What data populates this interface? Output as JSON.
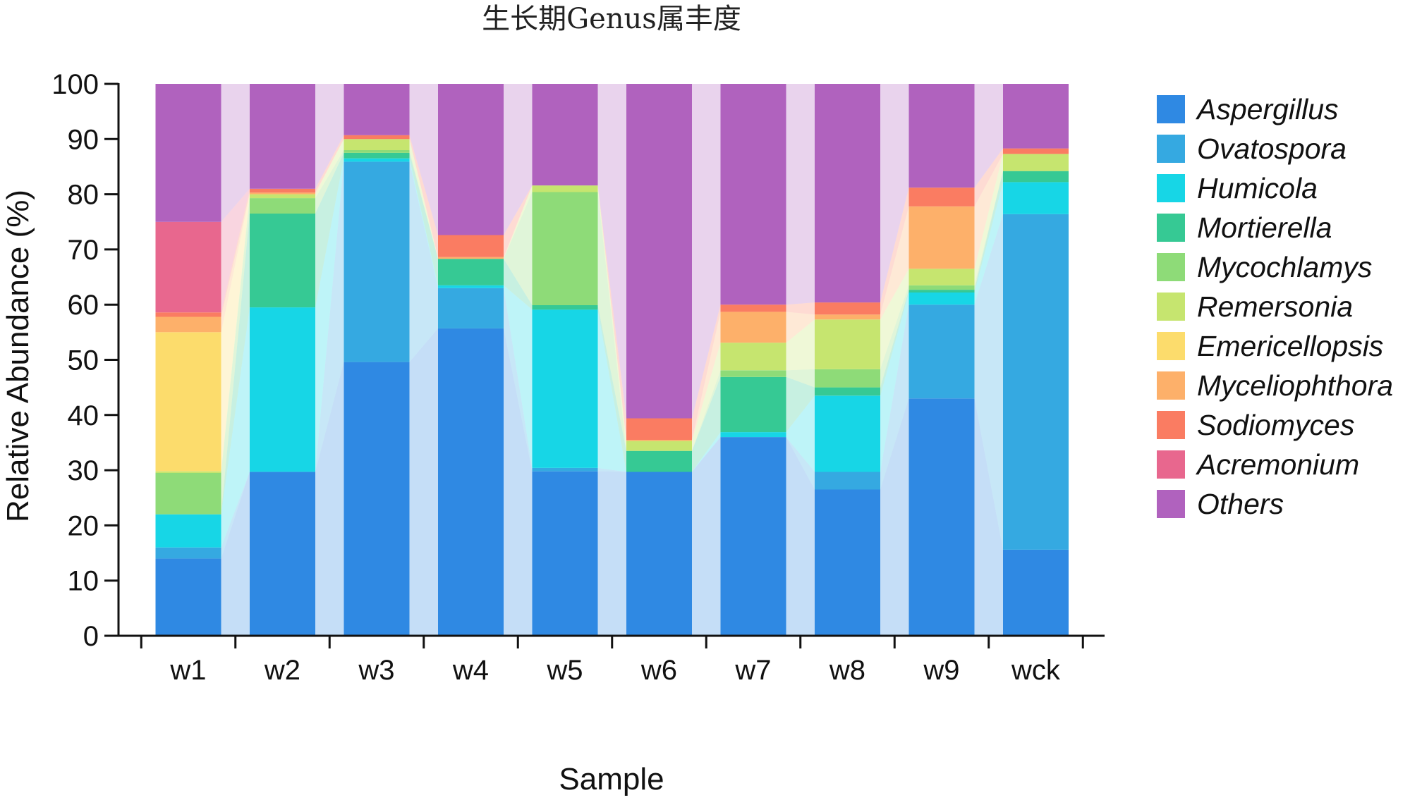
{
  "chart_data": {
    "type": "bar",
    "stacked": true,
    "title": "生长期Genus属丰度",
    "xlabel": "Sample",
    "ylabel": "Relative Abundance (%)",
    "ylim": [
      0,
      100
    ],
    "yticks": [
      0,
      10,
      20,
      30,
      40,
      50,
      60,
      70,
      80,
      90,
      100
    ],
    "categories": [
      "w1",
      "w2",
      "w3",
      "w4",
      "w5",
      "w6",
      "w7",
      "w8",
      "w9",
      "wck"
    ],
    "legend_position": "right",
    "series": [
      {
        "name": "Aspergillus",
        "color": "#2F89E3",
        "values": [
          14.0,
          29.7,
          49.6,
          55.7,
          29.8,
          29.7,
          36.0,
          26.5,
          43.0,
          15.6
        ]
      },
      {
        "name": "Ovatospora",
        "color": "#35A9E1",
        "values": [
          2.0,
          0.0,
          36.3,
          7.3,
          0.6,
          0.0,
          0.0,
          3.2,
          17.0,
          60.8
        ]
      },
      {
        "name": "Humicola",
        "color": "#17D6E6",
        "values": [
          6.0,
          29.8,
          0.6,
          0.5,
          28.7,
          0.0,
          0.9,
          13.8,
          2.2,
          5.8
        ]
      },
      {
        "name": "Mortierella",
        "color": "#36C994",
        "values": [
          0.0,
          17.0,
          1.0,
          4.8,
          0.8,
          3.8,
          10.0,
          1.5,
          0.5,
          2.0
        ]
      },
      {
        "name": "Mycochlamys",
        "color": "#8EDB78",
        "values": [
          7.5,
          2.8,
          0.5,
          0.0,
          20.5,
          0.0,
          1.2,
          3.3,
          0.8,
          0.0
        ]
      },
      {
        "name": "Remersonia",
        "color": "#C6E56F",
        "values": [
          0.3,
          0.7,
          2.0,
          0.0,
          1.2,
          1.8,
          5.0,
          9.0,
          3.0,
          3.1
        ]
      },
      {
        "name": "Emericellopsis",
        "color": "#FCDC6C",
        "values": [
          25.2,
          0.0,
          0.0,
          0.0,
          0.0,
          0.0,
          0.0,
          0.0,
          0.0,
          0.0
        ]
      },
      {
        "name": "Myceliophthora",
        "color": "#FDB06A",
        "values": [
          2.8,
          0.3,
          0.0,
          0.3,
          0.0,
          0.2,
          5.6,
          0.9,
          11.3,
          0.0
        ]
      },
      {
        "name": "Sodiomyces",
        "color": "#FA7C62",
        "values": [
          0.8,
          0.7,
          0.7,
          4.0,
          0.0,
          3.9,
          1.3,
          2.2,
          3.4,
          1.0
        ]
      },
      {
        "name": "Acremonium",
        "color": "#E8678E",
        "values": [
          16.4,
          0.0,
          0.0,
          0.0,
          0.0,
          0.0,
          0.0,
          0.0,
          0.0,
          0.0
        ]
      },
      {
        "name": "Others",
        "color": "#B062BE",
        "values": [
          25.0,
          19.0,
          9.3,
          27.4,
          18.4,
          60.6,
          40.0,
          39.6,
          18.8,
          11.7
        ]
      }
    ]
  }
}
